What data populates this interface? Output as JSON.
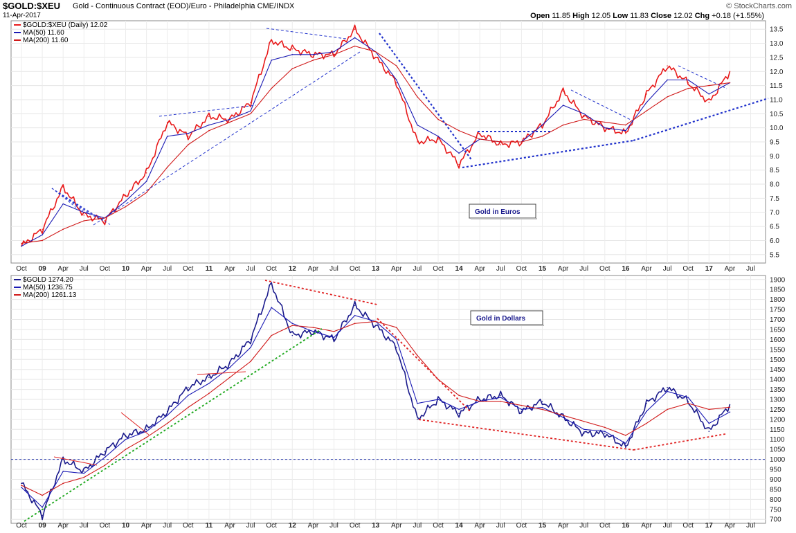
{
  "header": {
    "symbol": "$GOLD:$XEU",
    "description": "Gold - Continuous Contract (EOD)/Euro - Philadelphia CME/INDX",
    "date": "11-Apr-2017",
    "watermark": "© StockCharts.com",
    "ohlc": {
      "open_label": "Open",
      "open": "11.85",
      "high_label": "High",
      "high": "12.05",
      "low_label": "Low",
      "low": "11.83",
      "close_label": "Close",
      "close": "12.02",
      "chg_label": "Chg",
      "chg": "+0.18 (+1.55%)"
    }
  },
  "chart_data": [
    {
      "type": "line",
      "annotation": "Gold in Euros",
      "legend": [
        "$GOLD:$XEU (Daily) 12.02",
        "MA(50) 11.60",
        "MA(200) 11.60"
      ],
      "colors": {
        "price": "#e8191a",
        "ma50": "#1a1ab4",
        "ma200": "#d01818",
        "trend": "#2233cc"
      },
      "ylim": [
        5.2,
        13.8
      ],
      "yticks": [
        5.5,
        6.0,
        6.5,
        7.0,
        7.5,
        8.0,
        8.5,
        9.0,
        9.5,
        10.0,
        10.5,
        11.0,
        11.5,
        12.0,
        12.5,
        13.0,
        13.5
      ],
      "x": [
        "2008-10",
        "2009-01",
        "2009-04",
        "2009-07",
        "2009-10",
        "2010-01",
        "2010-04",
        "2010-07",
        "2010-10",
        "2011-01",
        "2011-04",
        "2011-07",
        "2011-10",
        "2012-01",
        "2012-04",
        "2012-07",
        "2012-10",
        "2013-01",
        "2013-04",
        "2013-07",
        "2013-10",
        "2014-01",
        "2014-04",
        "2014-07",
        "2014-10",
        "2015-01",
        "2015-04",
        "2015-07",
        "2015-10",
        "2016-01",
        "2016-04",
        "2016-07",
        "2016-10",
        "2017-01",
        "2017-04"
      ],
      "series": [
        {
          "name": "$GOLD:$XEU (Daily)",
          "values": [
            5.8,
            6.4,
            7.9,
            6.9,
            6.7,
            7.6,
            8.4,
            10.2,
            9.7,
            10.4,
            10.3,
            10.9,
            13.1,
            12.8,
            12.6,
            12.6,
            13.5,
            12.5,
            11.6,
            9.5,
            9.6,
            8.7,
            9.8,
            9.4,
            9.5,
            10.1,
            11.3,
            10.4,
            10.0,
            9.8,
            11.2,
            12.2,
            11.6,
            10.9,
            12.0
          ]
        },
        {
          "name": "MA(50)",
          "values": [
            5.8,
            6.2,
            7.3,
            7.0,
            6.8,
            7.4,
            8.1,
            9.7,
            9.8,
            10.1,
            10.3,
            10.6,
            12.4,
            12.6,
            12.6,
            12.7,
            13.2,
            12.7,
            11.7,
            10.1,
            9.7,
            9.1,
            9.6,
            9.5,
            9.5,
            10.1,
            10.8,
            10.5,
            10.0,
            9.9,
            10.9,
            11.7,
            11.7,
            11.2,
            11.6
          ]
        },
        {
          "name": "MA(200)",
          "values": [
            5.9,
            6.0,
            6.4,
            6.7,
            6.8,
            7.2,
            7.7,
            8.6,
            9.4,
            9.9,
            10.2,
            10.5,
            11.4,
            12.1,
            12.4,
            12.6,
            12.9,
            12.7,
            12.2,
            11.1,
            10.3,
            9.9,
            9.6,
            9.5,
            9.5,
            9.7,
            10.1,
            10.3,
            10.2,
            10.1,
            10.6,
            11.1,
            11.4,
            11.5,
            11.6
          ]
        }
      ],
      "xticks": [
        "Oct",
        "09",
        "Apr",
        "Jul",
        "Oct",
        "10",
        "Apr",
        "Jul",
        "Oct",
        "11",
        "Apr",
        "Jul",
        "Oct",
        "12",
        "Apr",
        "Jul",
        "Oct",
        "13",
        "Apr",
        "Jul",
        "Oct",
        "14",
        "Apr",
        "Jul",
        "Oct",
        "15",
        "Apr",
        "Jul",
        "Oct",
        "16",
        "Apr",
        "Jul",
        "Oct",
        "17",
        "Apr",
        "Jul"
      ]
    },
    {
      "type": "line",
      "annotation": "Gold in Dollars",
      "legend": [
        "$GOLD 1274.20",
        "MA(50) 1236.75",
        "MA(200) 1261.13"
      ],
      "colors": {
        "price": "#1a1a8c",
        "ma50": "#1a1ab4",
        "ma200": "#d01818",
        "trend_red": "#e02020",
        "trend_green": "#22aa22",
        "hline": "#2233aa"
      },
      "ylim": [
        680,
        1920
      ],
      "yticks": [
        700,
        750,
        800,
        850,
        900,
        950,
        1000,
        1050,
        1100,
        1150,
        1200,
        1250,
        1300,
        1350,
        1400,
        1450,
        1500,
        1550,
        1600,
        1650,
        1700,
        1750,
        1800,
        1850,
        1900
      ],
      "reference_line": 1000,
      "x": [
        "2008-10",
        "2009-01",
        "2009-04",
        "2009-07",
        "2009-10",
        "2010-01",
        "2010-04",
        "2010-07",
        "2010-10",
        "2011-01",
        "2011-04",
        "2011-07",
        "2011-10",
        "2012-01",
        "2012-04",
        "2012-07",
        "2012-10",
        "2013-01",
        "2013-04",
        "2013-07",
        "2013-10",
        "2014-01",
        "2014-04",
        "2014-07",
        "2014-10",
        "2015-01",
        "2015-04",
        "2015-07",
        "2015-10",
        "2016-01",
        "2016-04",
        "2016-07",
        "2016-10",
        "2017-01",
        "2017-04"
      ],
      "series": [
        {
          "name": "$GOLD",
          "values": [
            880,
            720,
            1000,
            940,
            1040,
            1120,
            1150,
            1240,
            1360,
            1410,
            1480,
            1600,
            1880,
            1620,
            1640,
            1600,
            1770,
            1670,
            1560,
            1200,
            1300,
            1230,
            1300,
            1320,
            1240,
            1290,
            1210,
            1130,
            1130,
            1060,
            1280,
            1360,
            1290,
            1140,
            1274
          ]
        },
        {
          "name": "MA(50)",
          "values": [
            860,
            760,
            940,
            930,
            1010,
            1100,
            1140,
            1220,
            1320,
            1380,
            1460,
            1560,
            1760,
            1680,
            1640,
            1610,
            1720,
            1690,
            1600,
            1280,
            1300,
            1250,
            1290,
            1310,
            1250,
            1260,
            1210,
            1150,
            1140,
            1080,
            1240,
            1340,
            1310,
            1180,
            1237
          ]
        },
        {
          "name": "MA(200)",
          "values": [
            870,
            820,
            880,
            910,
            970,
            1050,
            1110,
            1180,
            1260,
            1330,
            1410,
            1490,
            1620,
            1670,
            1660,
            1640,
            1680,
            1690,
            1660,
            1520,
            1400,
            1320,
            1290,
            1290,
            1270,
            1250,
            1220,
            1190,
            1160,
            1120,
            1180,
            1250,
            1280,
            1250,
            1261
          ]
        }
      ],
      "xticks": [
        "Oct",
        "09",
        "Apr",
        "Jul",
        "Oct",
        "10",
        "Apr",
        "Jul",
        "Oct",
        "11",
        "Apr",
        "Jul",
        "Oct",
        "12",
        "Apr",
        "Jul",
        "Oct",
        "13",
        "Apr",
        "Jul",
        "Oct",
        "14",
        "Apr",
        "Jul",
        "Oct",
        "15",
        "Apr",
        "Jul",
        "Oct",
        "16",
        "Apr",
        "Jul",
        "Oct",
        "17",
        "Apr",
        "Jul"
      ]
    }
  ]
}
